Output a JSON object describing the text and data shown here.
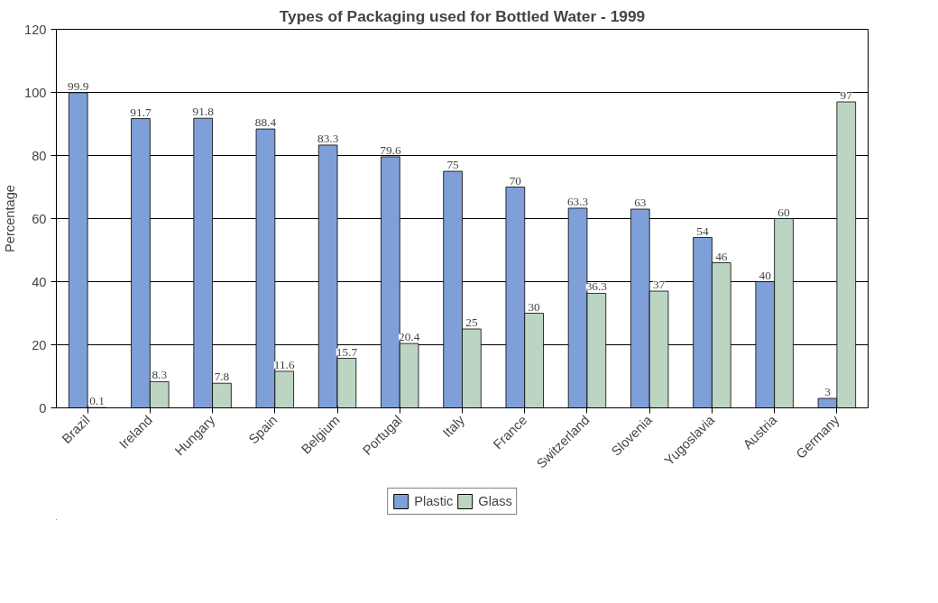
{
  "chart_data": {
    "type": "bar",
    "title": "Types of Packaging used for Bottled Water - 1999",
    "ylabel": "Percentage",
    "categories": [
      "Brazil",
      "Ireland",
      "Hungary",
      "Spain",
      "Belgium",
      "Portugal",
      "Italy",
      "France",
      "Switzerland",
      "Slovenia",
      "Yugoslavia",
      "Austria",
      "Germany"
    ],
    "series": [
      {
        "name": "Plastic",
        "color": "#7f9fd8",
        "values": [
          99.9,
          91.7,
          91.8,
          88.4,
          83.3,
          79.6,
          75,
          70,
          63.3,
          63,
          54,
          40,
          3
        ]
      },
      {
        "name": "Glass",
        "color": "#bcd5c3",
        "values": [
          0.1,
          8.3,
          7.8,
          11.6,
          15.7,
          20.4,
          25,
          30,
          36.3,
          37,
          46,
          60,
          97
        ]
      }
    ],
    "ylim": [
      0,
      120
    ],
    "yticks": [
      0,
      20,
      40,
      60,
      80,
      100,
      120
    ],
    "grid": "y",
    "legend": "bottom",
    "data_labels": true
  }
}
